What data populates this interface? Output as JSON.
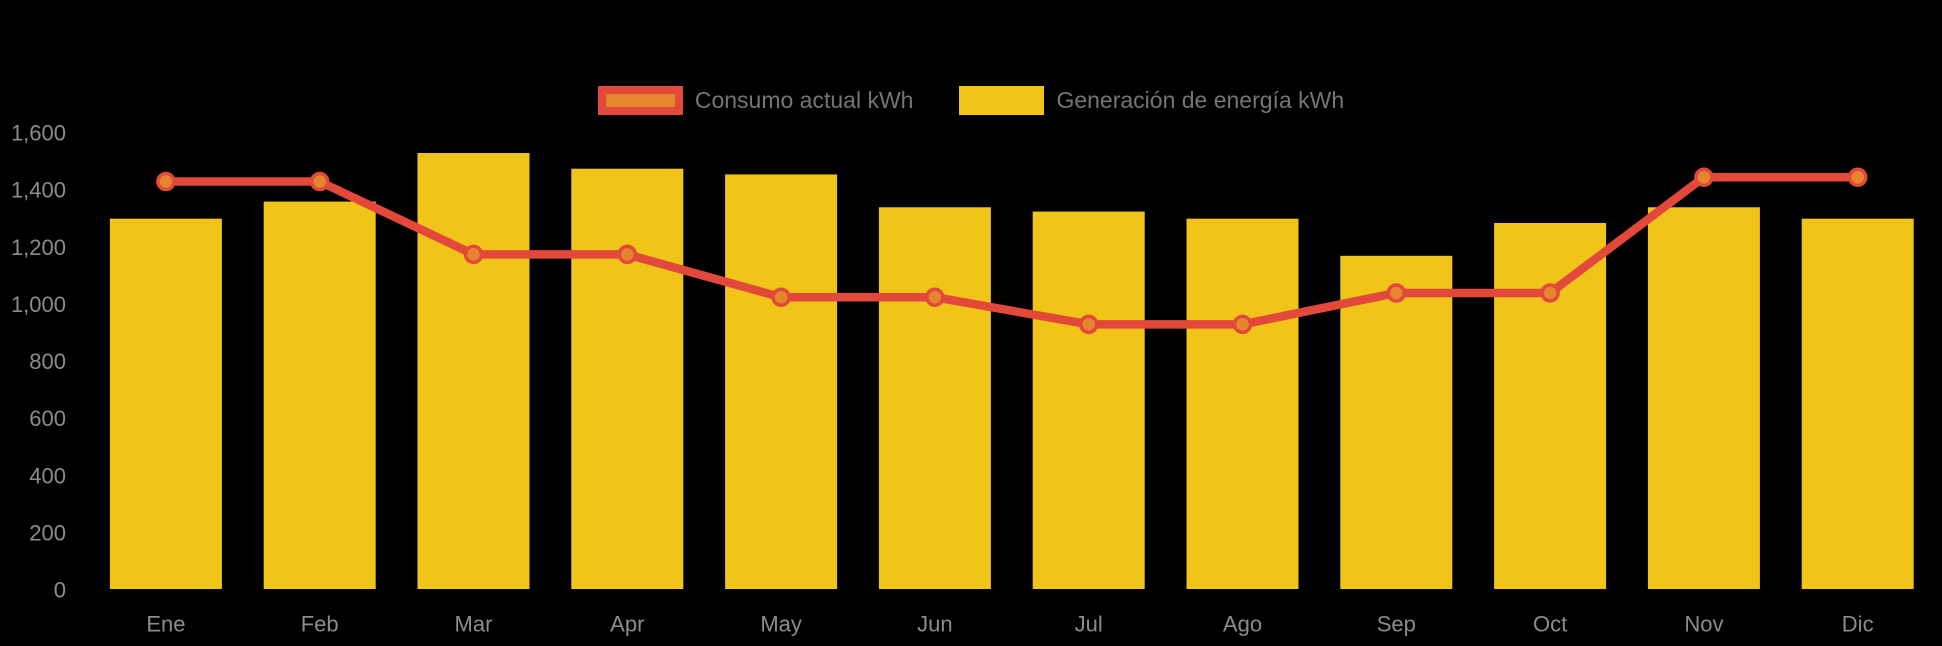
{
  "background_color": "#000000",
  "colors": {
    "bar_yellow": "#F0C419",
    "line_red": "#E2493B",
    "marker_orange": "#E5862E",
    "axis_label_gray": "#8c8c8c",
    "legend_text_gray": "#757575"
  },
  "legend": {
    "items": [
      {
        "label": "Consumo actual kWh",
        "swatch_fill": "#E5862E",
        "swatch_border": "#E2493B",
        "series_type": "line"
      },
      {
        "label": "Generación de energía kWh",
        "swatch_fill": "#F0C419",
        "swatch_border": "#F0C419",
        "series_type": "bar"
      }
    ]
  },
  "chart_data": {
    "type": "bar+line",
    "title": "",
    "xlabel": "",
    "ylabel": "",
    "categories": [
      "Ene",
      "Feb",
      "Mar",
      "Apr",
      "May",
      "Jun",
      "Jul",
      "Ago",
      "Sep",
      "Oct",
      "Nov",
      "Dic"
    ],
    "series": [
      {
        "name": "Consumo actual kWh",
        "type": "line",
        "color": "#E2493B",
        "marker_color": "#E5862E",
        "values": [
          1430,
          1430,
          1175,
          1175,
          1025,
          1025,
          930,
          930,
          1040,
          1040,
          1445,
          1445
        ]
      },
      {
        "name": "Generación de energía kWh",
        "type": "bar",
        "color": "#F0C419",
        "values": [
          1300,
          1360,
          1530,
          1475,
          1455,
          1340,
          1325,
          1300,
          1170,
          1285,
          1340,
          1300
        ]
      }
    ],
    "ylim": [
      0,
      1600
    ],
    "ytick_step": 200,
    "ytick_labels": [
      "0",
      "200",
      "400",
      "600",
      "800",
      "1,000",
      "1,200",
      "1,400",
      "1,600"
    ],
    "grid": false,
    "legend_position": "top-center"
  }
}
